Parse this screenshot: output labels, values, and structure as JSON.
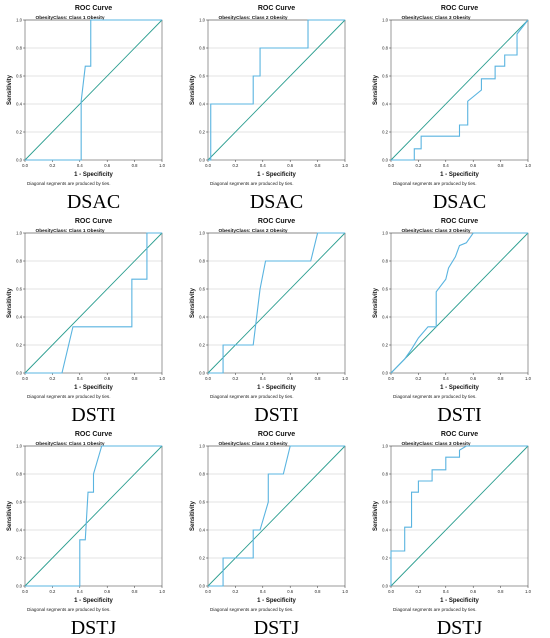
{
  "chart_data": [
    {
      "type": "line",
      "title": "ROC Curve",
      "subtitle": "ObesityClass: Class 1 Obesity",
      "xlabel": "1 - Specificity",
      "ylabel": "Sensitivity",
      "xlim": [
        0,
        1
      ],
      "ylim": [
        0,
        1
      ],
      "xticks": [
        "0.0",
        "0.2",
        "0.4",
        "0.6",
        "0.8",
        "1.0"
      ],
      "yticks": [
        "0.0",
        "0.2",
        "0.4",
        "0.6",
        "0.8",
        "1.0"
      ],
      "grid": "horizontal",
      "series": [
        {
          "x": [
            0,
            0.41,
            0.41,
            0.41,
            0.44,
            0.44,
            0.48,
            0.48,
            1
          ],
          "y": [
            0,
            0,
            0.42,
            0.42,
            0.67,
            0.67,
            0.67,
            1,
            1
          ]
        }
      ],
      "diagonal": true,
      "footnote": "Diagonal segments are produced by ties.",
      "panel_label": "DSAC"
    },
    {
      "type": "line",
      "title": "ROC Curve",
      "subtitle": "ObesityClass: Class 2 Obesity",
      "xlabel": "1 - Specificity",
      "ylabel": "Sensitivity",
      "xlim": [
        0,
        1
      ],
      "ylim": [
        0,
        1
      ],
      "xticks": [
        "0.0",
        "0.2",
        "0.4",
        "0.6",
        "0.8",
        "1.0"
      ],
      "yticks": [
        "0.0",
        "0.2",
        "0.4",
        "0.6",
        "0.8",
        "1.0"
      ],
      "grid": "horizontal",
      "series": [
        {
          "x": [
            0,
            0.02,
            0.02,
            0.33,
            0.33,
            0.38,
            0.38,
            0.73,
            0.73,
            1
          ],
          "y": [
            0,
            0,
            0.4,
            0.4,
            0.6,
            0.6,
            0.8,
            0.8,
            1,
            1
          ]
        }
      ],
      "diagonal": true,
      "footnote": "Diagonal segments are produced by ties.",
      "panel_label": "DSAC"
    },
    {
      "type": "line",
      "title": "ROC Curve",
      "subtitle": "ObesityClass: Class 3 Obesity",
      "xlabel": "1 - Specificity",
      "ylabel": "Sensitivity",
      "xlim": [
        0,
        1
      ],
      "ylim": [
        0,
        1
      ],
      "xticks": [
        "0.0",
        "0.2",
        "0.4",
        "0.6",
        "0.8",
        "1.0"
      ],
      "yticks": [
        "0.0",
        "0.2",
        "0.4",
        "0.6",
        "0.8",
        "1.0"
      ],
      "grid": "horizontal",
      "series": [
        {
          "x": [
            0,
            0.17,
            0.17,
            0.22,
            0.22,
            0.5,
            0.5,
            0.56,
            0.56,
            0.66,
            0.66,
            0.76,
            0.76,
            0.83,
            0.83,
            0.92,
            0.92,
            1.0
          ],
          "y": [
            0,
            0,
            0.08,
            0.08,
            0.17,
            0.17,
            0.25,
            0.25,
            0.42,
            0.5,
            0.58,
            0.58,
            0.67,
            0.67,
            0.75,
            0.75,
            0.9,
            1.0
          ]
        }
      ],
      "diagonal": true,
      "footnote": "Diagonal segments are produced by ties.",
      "panel_label": "DSAC"
    },
    {
      "type": "line",
      "title": "ROC Curve",
      "subtitle": "ObesityClass: Class 1 Obesity",
      "xlabel": "1 - Specificity",
      "ylabel": "Sensitivity",
      "xlim": [
        0,
        1
      ],
      "ylim": [
        0,
        1
      ],
      "xticks": [
        "0.0",
        "0.2",
        "0.4",
        "0.6",
        "0.8",
        "1.0"
      ],
      "yticks": [
        "0.0",
        "0.2",
        "0.4",
        "0.6",
        "0.8",
        "1.0"
      ],
      "grid": "horizontal",
      "series": [
        {
          "x": [
            0,
            0.27,
            0.35,
            0.35,
            0.78,
            0.78,
            0.89,
            0.89,
            0.93,
            1.0
          ],
          "y": [
            0,
            0,
            0.33,
            0.33,
            0.33,
            0.67,
            0.67,
            1,
            1,
            1
          ]
        }
      ],
      "diagonal": true,
      "footnote": "Diagonal segments are produced by ties.",
      "panel_label": "DSTI"
    },
    {
      "type": "line",
      "title": "ROC Curve",
      "subtitle": "ObesityClass: Class 2 Obesity",
      "xlabel": "1 - Specificity",
      "ylabel": "Sensitivity",
      "xlim": [
        0,
        1
      ],
      "ylim": [
        0,
        1
      ],
      "xticks": [
        "0.0",
        "0.2",
        "0.4",
        "0.6",
        "0.8",
        "1.0"
      ],
      "yticks": [
        "0.0",
        "0.2",
        "0.4",
        "0.6",
        "0.8",
        "1.0"
      ],
      "grid": "horizontal",
      "series": [
        {
          "x": [
            0,
            0.11,
            0.11,
            0.33,
            0.38,
            0.38,
            0.42,
            0.42,
            0.75,
            0.8,
            1.0
          ],
          "y": [
            0,
            0,
            0.2,
            0.2,
            0.6,
            0.6,
            0.8,
            0.8,
            0.8,
            1,
            1
          ]
        }
      ],
      "diagonal": true,
      "footnote": "Diagonal segments are produced by ties.",
      "panel_label": "DSTI"
    },
    {
      "type": "line",
      "title": "ROC Curve",
      "subtitle": "ObesityClass: Class 3 Obesity",
      "xlabel": "1 - Specificity",
      "ylabel": "Sensitivity",
      "xlim": [
        0,
        1
      ],
      "ylim": [
        0,
        1
      ],
      "xticks": [
        "0.0",
        "0.2",
        "0.4",
        "0.6",
        "0.8",
        "1.0"
      ],
      "yticks": [
        "0.0",
        "0.2",
        "0.4",
        "0.6",
        "0.8",
        "1.0"
      ],
      "grid": "horizontal",
      "series": [
        {
          "x": [
            0,
            0.1,
            0.15,
            0.2,
            0.27,
            0.33,
            0.33,
            0.4,
            0.42,
            0.47,
            0.5,
            0.55,
            0.6,
            0.7,
            1.0
          ],
          "y": [
            0,
            0.1,
            0.17,
            0.25,
            0.33,
            0.33,
            0.58,
            0.67,
            0.75,
            0.83,
            0.91,
            0.93,
            1,
            1,
            1
          ]
        }
      ],
      "diagonal": true,
      "footnote": "Diagonal segments are produced by ties.",
      "panel_label": "DSTI"
    },
    {
      "type": "line",
      "title": "ROC Curve",
      "subtitle": "ObesityClass: Class 1 Obesity",
      "xlabel": "1 - Specificity",
      "ylabel": "Sensitivity",
      "xlim": [
        0,
        1
      ],
      "ylim": [
        0,
        1
      ],
      "xticks": [
        "0.0",
        "0.2",
        "0.4",
        "0.6",
        "0.8",
        "1.0"
      ],
      "yticks": [
        "0.0",
        "0.2",
        "0.4",
        "0.6",
        "0.8",
        "1.0"
      ],
      "grid": "horizontal",
      "series": [
        {
          "x": [
            0,
            0.4,
            0.4,
            0.44,
            0.44,
            0.46,
            0.46,
            0.5,
            0.5,
            0.56,
            1.0
          ],
          "y": [
            0,
            0,
            0.33,
            0.33,
            0.33,
            0.67,
            0.67,
            0.67,
            0.8,
            1,
            1
          ]
        }
      ],
      "diagonal": true,
      "footnote": "Diagonal segments are produced by ties.",
      "panel_label": "DSTJ"
    },
    {
      "type": "line",
      "title": "ROC Curve",
      "subtitle": "ObesityClass: Class 2 Obesity",
      "xlabel": "1 - Specificity",
      "ylabel": "Sensitivity",
      "xlim": [
        0,
        1
      ],
      "ylim": [
        0,
        1
      ],
      "xticks": [
        "0.0",
        "0.2",
        "0.4",
        "0.6",
        "0.8",
        "1.0"
      ],
      "yticks": [
        "0.0",
        "0.2",
        "0.4",
        "0.6",
        "0.8",
        "1.0"
      ],
      "grid": "horizontal",
      "series": [
        {
          "x": [
            0,
            0.11,
            0.11,
            0.33,
            0.33,
            0.38,
            0.44,
            0.44,
            0.5,
            0.55,
            0.6,
            0.6,
            1.0
          ],
          "y": [
            0,
            0,
            0.2,
            0.2,
            0.4,
            0.4,
            0.6,
            0.8,
            0.8,
            0.8,
            1,
            1,
            1
          ]
        }
      ],
      "diagonal": true,
      "footnote": "Diagonal segments are produced by ties.",
      "panel_label": "DSTJ"
    },
    {
      "type": "line",
      "title": "ROC Curve",
      "subtitle": "ObesityClass: Class 3 Obesity",
      "xlabel": "1 - Specificity",
      "ylabel": "Sensitivity",
      "xlim": [
        0,
        1
      ],
      "ylim": [
        0,
        1
      ],
      "xticks": [
        "0.0",
        "0.2",
        "0.4",
        "0.6",
        "0.8",
        "1.0"
      ],
      "yticks": [
        "0.0",
        "0.2",
        "0.4",
        "0.6",
        "0.8",
        "1.0"
      ],
      "grid": "horizontal",
      "series": [
        {
          "x": [
            0,
            0,
            0.1,
            0.1,
            0.15,
            0.15,
            0.2,
            0.2,
            0.3,
            0.3,
            0.4,
            0.4,
            0.5,
            0.5,
            0.55,
            0.6,
            1.0
          ],
          "y": [
            0,
            0.25,
            0.25,
            0.42,
            0.42,
            0.67,
            0.67,
            0.75,
            0.75,
            0.83,
            0.83,
            0.92,
            0.92,
            0.97,
            1,
            1,
            1
          ]
        }
      ],
      "diagonal": true,
      "footnote": "Diagonal segments are produced by ties.",
      "panel_label": "DSTJ"
    }
  ],
  "colors": {
    "roc_curve": "#5ab4e0",
    "reference_line": "#2a9d8f",
    "gridline": "#c8c8c8",
    "text": "#111111"
  }
}
